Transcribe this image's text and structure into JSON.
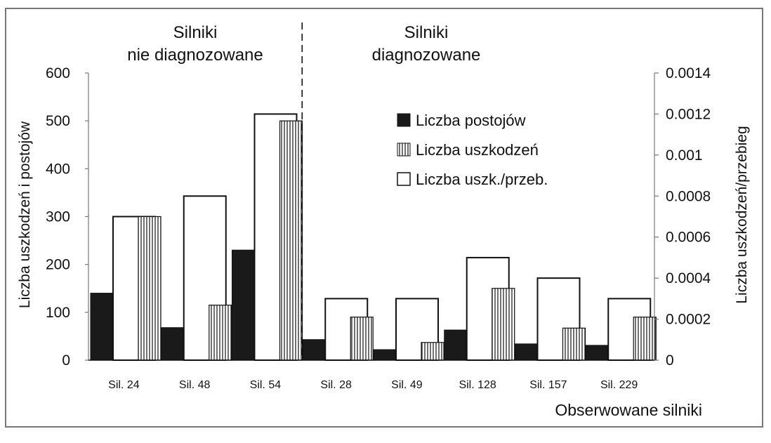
{
  "chart_data": {
    "type": "bar",
    "categories": [
      "Sil. 24",
      "Sil. 48",
      "Sil. 54",
      "Sil. 28",
      "Sil. 49",
      "Sil. 128",
      "Sil. 157",
      "Sil. 229"
    ],
    "series": [
      {
        "name": "Liczba postojów",
        "axis": "left",
        "pattern": "solid-black",
        "values": [
          140,
          68,
          230,
          43,
          22,
          63,
          34,
          31
        ]
      },
      {
        "name": "Liczba uszkodzeń",
        "axis": "left",
        "pattern": "vertical-hatch",
        "values": [
          300,
          115,
          500,
          90,
          37,
          150,
          67,
          90
        ]
      },
      {
        "name": "Liczba uszk./przeb.",
        "axis": "right",
        "pattern": "white",
        "values": [
          0.0007,
          0.0008,
          0.0012,
          0.0003,
          0.0003,
          0.0005,
          0.0004,
          0.0003
        ]
      }
    ],
    "ylabel_left": "Liczba uszkodzeń i postojów",
    "ylabel_right": "Liczba uszkodzeń/przebieg",
    "xlabel": "Obserwowane silniki",
    "ylim_left": [
      0,
      600
    ],
    "ylim_right": [
      0,
      0.0014
    ],
    "yticks_left": [
      "0",
      "100",
      "200",
      "300",
      "400",
      "500",
      "600"
    ],
    "yticks_right": [
      "0",
      "0.0002",
      "0.0004",
      "0.0006",
      "0.0008",
      "0.001",
      "0.0012",
      "0.0014"
    ],
    "groups": [
      {
        "label_line1": "Silniki",
        "label_line2": "nie diagnozowane",
        "count": 3
      },
      {
        "label_line1": "Silniki",
        "label_line2": "diagnozowane",
        "count": 5
      }
    ],
    "legend_position": "upper-center-right",
    "grid": false,
    "colors": {
      "solid": "#1a1a1a",
      "hatch": "#222222",
      "outline": "#111111"
    }
  }
}
